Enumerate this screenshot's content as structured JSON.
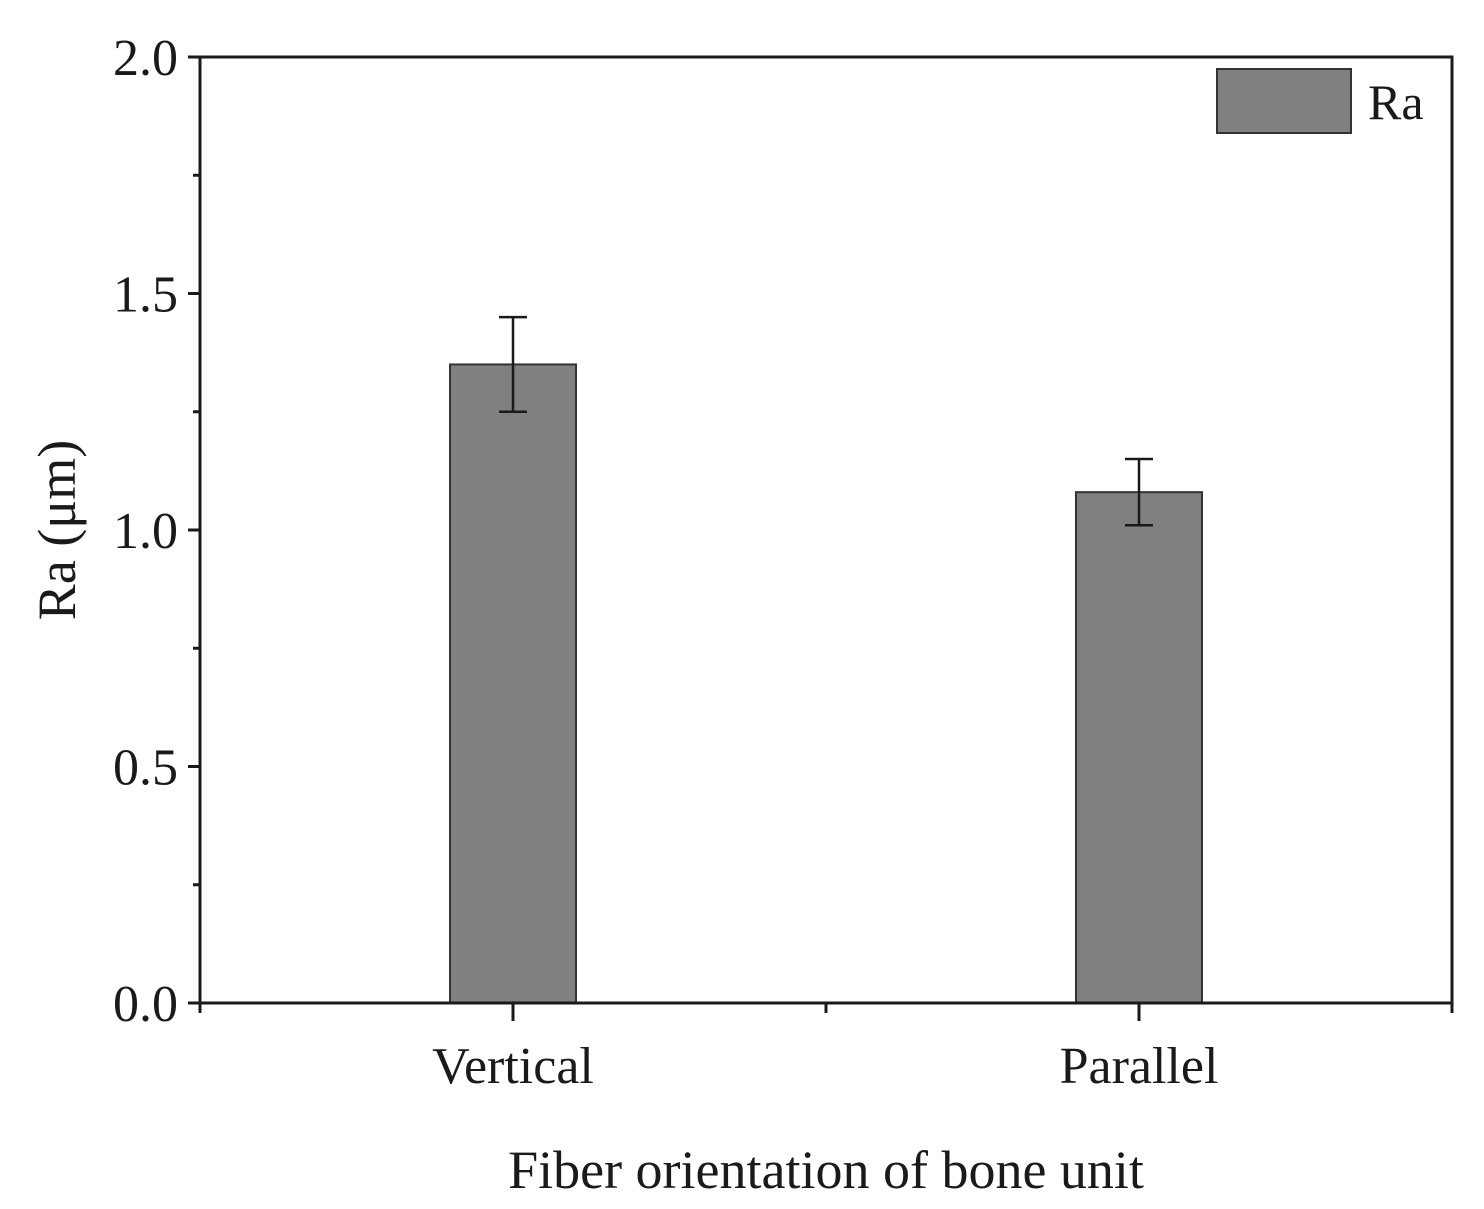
{
  "chart_data": {
    "type": "bar",
    "categories": [
      "Vertical",
      "Parallel"
    ],
    "series": [
      {
        "name": "Ra",
        "values": [
          1.35,
          1.08
        ],
        "errors": [
          0.1,
          0.07
        ],
        "color": "#808080"
      }
    ],
    "xlabel": "Fiber orientation of bone unit",
    "ylabel": "Ra (μm)",
    "ylim": [
      0,
      2.0
    ],
    "yticks": [
      0.0,
      0.5,
      1.0,
      1.5,
      2.0
    ],
    "ytick_labels": [
      "0.0",
      "0.5",
      "1.0",
      "1.5",
      "2.0"
    ],
    "grid": false,
    "legend": {
      "position": "top-right",
      "entries": [
        "Ra"
      ]
    }
  }
}
